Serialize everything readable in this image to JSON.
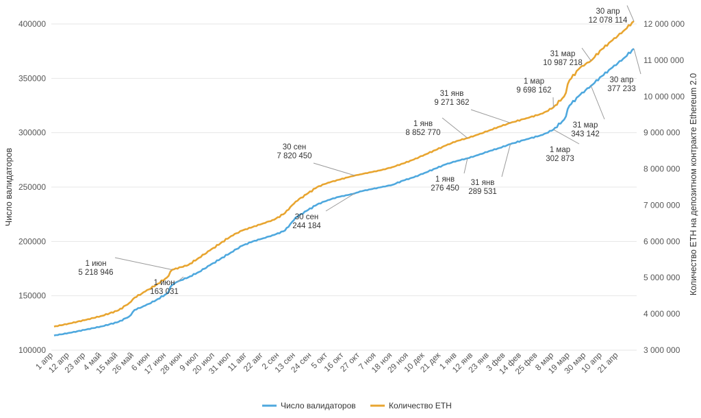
{
  "chart_data": {
    "type": "line",
    "left_axis": {
      "label": "Число валидаторов",
      "ylim": [
        100000,
        400000
      ],
      "ticks": [
        "100000",
        "150000",
        "200000",
        "250000",
        "300000",
        "350000",
        "400000"
      ]
    },
    "right_axis": {
      "label": "Количество ETH на депозитном контракте Ethereum 2.0",
      "ylim": [
        3000000,
        12000000
      ],
      "ticks": [
        "3 000 000",
        "4 000 000",
        "5 000 000",
        "6 000 000",
        "7 000 000",
        "8 000 000",
        "9 000 000",
        "10 000 000",
        "11 000 000",
        "12 000 000"
      ]
    },
    "x_ticks": [
      "1 апр",
      "12 апр",
      "23 апр",
      "4 май",
      "15 май",
      "26 май",
      "6 июн",
      "17 июн",
      "28 июн",
      "9 июл",
      "20 июл",
      "31 июл",
      "11 авг",
      "22 авг",
      "2 сен",
      "13 сен",
      "24 сен",
      "5 окт",
      "16 окт",
      "27 окт",
      "7 ноя",
      "18 ноя",
      "29 ноя",
      "10 дек",
      "21 дек",
      "1 янв",
      "12 янв",
      "23 янв",
      "3 фев",
      "14 фев",
      "25 фев",
      "8 мар",
      "19 мар",
      "30 мар",
      "10 апр",
      "21 апр"
    ],
    "series": [
      {
        "name": "Число валидаторов",
        "axis": "left",
        "color": "#4ea8de",
        "points": [
          [
            0,
            113500
          ],
          [
            3,
            116000
          ],
          [
            6,
            119000
          ],
          [
            9,
            122000
          ],
          [
            12,
            126000
          ],
          [
            14,
            131000
          ],
          [
            15,
            137000
          ],
          [
            17,
            141000
          ],
          [
            19,
            146000
          ],
          [
            21,
            152000
          ],
          [
            22,
            160000
          ],
          [
            23,
            163031
          ],
          [
            25,
            167000
          ],
          [
            27,
            172000
          ],
          [
            29,
            178000
          ],
          [
            31,
            184000
          ],
          [
            33,
            190000
          ],
          [
            35,
            196000
          ],
          [
            37,
            200000
          ],
          [
            39,
            203000
          ],
          [
            41,
            206000
          ],
          [
            43,
            210000
          ],
          [
            44,
            216000
          ],
          [
            45,
            222000
          ],
          [
            47,
            228000
          ],
          [
            49,
            234000
          ],
          [
            51,
            238000
          ],
          [
            53,
            241000
          ],
          [
            55,
            243000
          ],
          [
            56,
            244184
          ],
          [
            57,
            246000
          ],
          [
            59,
            248000
          ],
          [
            61,
            250000
          ],
          [
            63,
            252000
          ],
          [
            65,
            256000
          ],
          [
            67,
            259000
          ],
          [
            69,
            263000
          ],
          [
            71,
            267000
          ],
          [
            73,
            271000
          ],
          [
            75,
            274000
          ],
          [
            77,
            276450
          ],
          [
            79,
            279500
          ],
          [
            81,
            283000
          ],
          [
            83,
            286000
          ],
          [
            85,
            289531
          ],
          [
            88,
            294000
          ],
          [
            91,
            298000
          ],
          [
            93,
            302873
          ],
          [
            95,
            312000
          ],
          [
            96,
            325000
          ],
          [
            98,
            335000
          ],
          [
            100,
            343142
          ],
          [
            102,
            352000
          ],
          [
            104,
            360000
          ],
          [
            106,
            368000
          ],
          [
            108,
            377233
          ]
        ]
      },
      {
        "name": "Количество ETH",
        "axis": "right",
        "color": "#e8a530",
        "points": [
          [
            0,
            3650000
          ],
          [
            3,
            3740000
          ],
          [
            6,
            3840000
          ],
          [
            9,
            3950000
          ],
          [
            12,
            4100000
          ],
          [
            14,
            4300000
          ],
          [
            15,
            4450000
          ],
          [
            17,
            4620000
          ],
          [
            19,
            4800000
          ],
          [
            21,
            5000000
          ],
          [
            22,
            5218946
          ],
          [
            25,
            5350000
          ],
          [
            27,
            5550000
          ],
          [
            29,
            5750000
          ],
          [
            31,
            5950000
          ],
          [
            33,
            6150000
          ],
          [
            35,
            6300000
          ],
          [
            37,
            6400000
          ],
          [
            39,
            6500000
          ],
          [
            41,
            6600000
          ],
          [
            43,
            6780000
          ],
          [
            44,
            6950000
          ],
          [
            45,
            7100000
          ],
          [
            47,
            7300000
          ],
          [
            49,
            7500000
          ],
          [
            51,
            7620000
          ],
          [
            53,
            7700000
          ],
          [
            55,
            7780000
          ],
          [
            56,
            7820450
          ],
          [
            57,
            7850000
          ],
          [
            59,
            7910000
          ],
          [
            61,
            7970000
          ],
          [
            63,
            8050000
          ],
          [
            65,
            8150000
          ],
          [
            67,
            8260000
          ],
          [
            69,
            8390000
          ],
          [
            71,
            8520000
          ],
          [
            73,
            8650000
          ],
          [
            75,
            8770000
          ],
          [
            77,
            8852770
          ],
          [
            79,
            8950000
          ],
          [
            81,
            9060000
          ],
          [
            83,
            9170000
          ],
          [
            85,
            9271362
          ],
          [
            88,
            9400000
          ],
          [
            91,
            9530000
          ],
          [
            93,
            9698162
          ],
          [
            95,
            10000000
          ],
          [
            96,
            10450000
          ],
          [
            98,
            10800000
          ],
          [
            100,
            10987218
          ],
          [
            102,
            11300000
          ],
          [
            104,
            11550000
          ],
          [
            106,
            11800000
          ],
          [
            108,
            12078114
          ]
        ]
      }
    ],
    "annotations": [
      {
        "series": 1,
        "x": 22,
        "date": "1 июн",
        "value": "5 218 946"
      },
      {
        "series": 0,
        "x": 23,
        "date": "1 июн",
        "value": "163 031"
      },
      {
        "series": 1,
        "x": 56,
        "date": "30 сен",
        "value": "7 820 450"
      },
      {
        "series": 0,
        "x": 56,
        "date": "30 сен",
        "value": "244 184"
      },
      {
        "series": 1,
        "x": 77,
        "date": "1 янв",
        "value": "8 852 770"
      },
      {
        "series": 0,
        "x": 77,
        "date": "1 янв",
        "value": "276 450"
      },
      {
        "series": 1,
        "x": 85,
        "date": "31 янв",
        "value": "9 271 362"
      },
      {
        "series": 0,
        "x": 85,
        "date": "31 янв",
        "value": "289 531"
      },
      {
        "series": 1,
        "x": 93,
        "date": "1 мар",
        "value": "9 698 162"
      },
      {
        "series": 0,
        "x": 93,
        "date": "1 мар",
        "value": "302 873"
      },
      {
        "series": 1,
        "x": 100,
        "date": "31 мар",
        "value": "10 987 218"
      },
      {
        "series": 0,
        "x": 100,
        "date": "31 мар",
        "value": "343 142"
      },
      {
        "series": 1,
        "x": 108,
        "date": "30 апр",
        "value": "12 078 114"
      },
      {
        "series": 0,
        "x": 108,
        "date": "30 апр",
        "value": "377 233"
      }
    ],
    "legend": [
      "Число валидаторов",
      "Количество ETH"
    ],
    "legend_position": "bottom-center",
    "grid": true
  }
}
